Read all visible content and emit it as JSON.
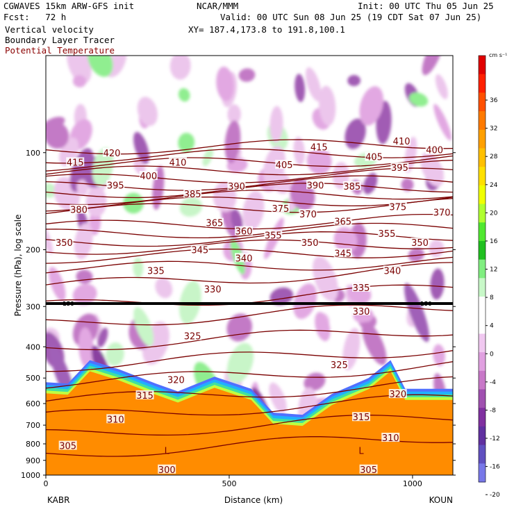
{
  "header": {
    "model": "CGWAVES 15km ARW-GFS init",
    "forecast": "Fcst:   72 h",
    "field1": "Vertical velocity",
    "field2": "Boundary Layer Tracer",
    "field3": "Potential Temperature",
    "org": "NCAR/MMM",
    "init": "Init: 00 UTC Thu 05 Jun 25",
    "valid": "Valid: 00 UTC Sun 08 Jun 25 (19 CDT Sat 07 Jun 25)",
    "xy": "XY= 187.4,173.8 to 191.8,100.1",
    "field3_color": "#8b0000"
  },
  "chart_data": {
    "type": "heatmap",
    "xlabel": "Distance (km)",
    "ylabel": "Pressure (hPa), log scale",
    "x_ticks": [
      0,
      500,
      1000
    ],
    "xlim": [
      0,
      1110
    ],
    "y_ticks": [
      100,
      200,
      300,
      400,
      500,
      600,
      700,
      800,
      900,
      1000
    ],
    "ylim": [
      1000,
      50
    ],
    "y_scale": "log",
    "endpoints": {
      "left": "KABR",
      "right": "KOUN"
    },
    "colorbar": {
      "units": "cm s⁻¹",
      "labels": [
        "36",
        "32",
        "28",
        "24",
        "20",
        "16",
        "12",
        "8",
        "4",
        "0",
        "-4",
        "-8",
        "-12",
        "-16",
        "-20"
      ],
      "colors": [
        "#e00000",
        "#ff2000",
        "#ff5000",
        "#ff7a00",
        "#ffa000",
        "#ffc000",
        "#ffe000",
        "#f0ff00",
        "#b0ff30",
        "#50e830",
        "#20c020",
        "#80ee80",
        "#c8f8c8",
        "#ffffff",
        "#ffffff",
        "#f0c8f0",
        "#e0a0e0",
        "#c878c8",
        "#a050b0",
        "#8030a0",
        "#6030a0",
        "#6050c0",
        "#7878e8"
      ]
    },
    "theta_labels": [
      {
        "v": "415",
        "x": 80,
        "p": 107
      },
      {
        "v": "420",
        "x": 180,
        "p": 100
      },
      {
        "v": "410",
        "x": 360,
        "p": 107
      },
      {
        "v": "400",
        "x": 280,
        "p": 118
      },
      {
        "v": "395",
        "x": 190,
        "p": 126
      },
      {
        "v": "385",
        "x": 400,
        "p": 134
      },
      {
        "v": "390",
        "x": 520,
        "p": 127
      },
      {
        "v": "405",
        "x": 650,
        "p": 109
      },
      {
        "v": "415",
        "x": 745,
        "p": 96
      },
      {
        "v": "405",
        "x": 895,
        "p": 103
      },
      {
        "v": "410",
        "x": 970,
        "p": 92
      },
      {
        "v": "400",
        "x": 1060,
        "p": 98
      },
      {
        "v": "395",
        "x": 965,
        "p": 111
      },
      {
        "v": "390",
        "x": 735,
        "p": 126
      },
      {
        "v": "385",
        "x": 835,
        "p": 127
      },
      {
        "v": "380",
        "x": 90,
        "p": 150
      },
      {
        "v": "375",
        "x": 640,
        "p": 149
      },
      {
        "v": "370",
        "x": 715,
        "p": 155
      },
      {
        "v": "375",
        "x": 960,
        "p": 147
      },
      {
        "v": "370",
        "x": 1080,
        "p": 153
      },
      {
        "v": "365",
        "x": 460,
        "p": 165
      },
      {
        "v": "360",
        "x": 540,
        "p": 175
      },
      {
        "v": "355",
        "x": 620,
        "p": 180
      },
      {
        "v": "365",
        "x": 810,
        "p": 163
      },
      {
        "v": "355",
        "x": 930,
        "p": 178
      },
      {
        "v": "350",
        "x": 50,
        "p": 190
      },
      {
        "v": "345",
        "x": 420,
        "p": 200
      },
      {
        "v": "350",
        "x": 720,
        "p": 190
      },
      {
        "v": "350",
        "x": 1020,
        "p": 190
      },
      {
        "v": "340",
        "x": 540,
        "p": 212
      },
      {
        "v": "345",
        "x": 810,
        "p": 205
      },
      {
        "v": "335",
        "x": 300,
        "p": 232
      },
      {
        "v": "340",
        "x": 945,
        "p": 232
      },
      {
        "v": "330",
        "x": 455,
        "p": 265
      },
      {
        "v": "335",
        "x": 860,
        "p": 262
      },
      {
        "v": "330",
        "x": 860,
        "p": 310
      },
      {
        "v": "325",
        "x": 400,
        "p": 370
      },
      {
        "v": "325",
        "x": 800,
        "p": 455
      },
      {
        "v": "320",
        "x": 355,
        "p": 505
      },
      {
        "v": "320",
        "x": 960,
        "p": 560
      },
      {
        "v": "315",
        "x": 270,
        "p": 565
      },
      {
        "v": "315",
        "x": 860,
        "p": 660
      },
      {
        "v": "310",
        "x": 190,
        "p": 670
      },
      {
        "v": "310",
        "x": 940,
        "p": 765
      },
      {
        "v": "305",
        "x": 60,
        "p": 810
      },
      {
        "v": "300",
        "x": 330,
        "p": 960
      },
      {
        "v": "305",
        "x": 880,
        "p": 960
      }
    ],
    "tropopause_label": "150",
    "L_marks": [
      {
        "x": 330,
        "p": 860
      },
      {
        "x": 860,
        "p": 860
      }
    ]
  }
}
